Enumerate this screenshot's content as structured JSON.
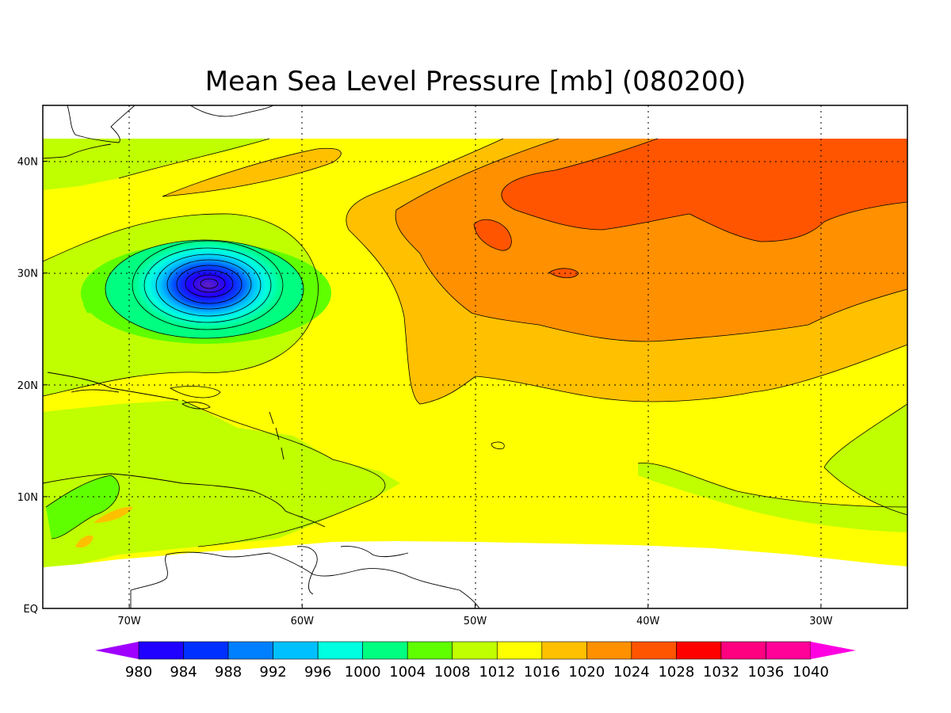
{
  "figure": {
    "title": "Mean Sea Level Pressure [mb] (080200)"
  },
  "axes": {
    "lon_range": [
      -75,
      -25
    ],
    "lat_range": [
      0,
      45
    ],
    "lon_ticks": [
      {
        "value": -70,
        "label": "70W"
      },
      {
        "value": -60,
        "label": "60W"
      },
      {
        "value": -50,
        "label": "50W"
      },
      {
        "value": -40,
        "label": "40W"
      },
      {
        "value": -30,
        "label": "30W"
      }
    ],
    "lat_ticks": [
      {
        "value": 0,
        "label": "EQ"
      },
      {
        "value": 10,
        "label": "10N"
      },
      {
        "value": 20,
        "label": "20N"
      },
      {
        "value": 30,
        "label": "30N"
      },
      {
        "value": 40,
        "label": "40N"
      }
    ],
    "grid": true
  },
  "colorbar": {
    "levels": [
      "980",
      "984",
      "988",
      "992",
      "996",
      "1000",
      "1004",
      "1008",
      "1012",
      "1016",
      "1020",
      "1024",
      "1028",
      "1032",
      "1036",
      "1040"
    ],
    "colors": [
      "#a000ff",
      "#2000ff",
      "#0030ff",
      "#0080ff",
      "#00c0ff",
      "#00ffe0",
      "#00ff80",
      "#60ff00",
      "#c0ff00",
      "#ffff00",
      "#ffc000",
      "#ff9000",
      "#ff5500",
      "#ff0000",
      "#ff0080",
      "#ff0099",
      "#ff00e0"
    ]
  },
  "field_colors": {
    "land_white": "#ffffff",
    "p1008": "#60ff00",
    "p1012": "#c0ff00",
    "p1016": "#ffff00",
    "p1020": "#ffc000",
    "p1024": "#ff9000",
    "p1028": "#ff5500"
  },
  "low_center": {
    "lon": -65.5,
    "lat": 28.5,
    "min_pressure": 980
  }
}
